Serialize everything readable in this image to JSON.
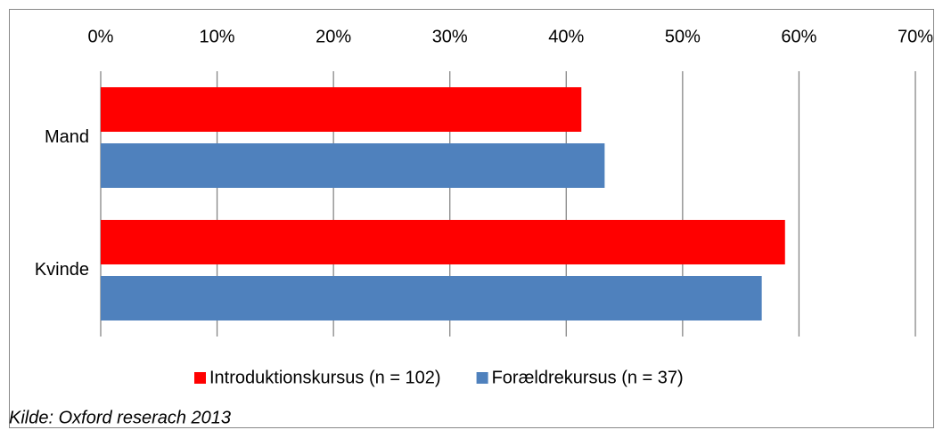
{
  "chart_data": {
    "type": "bar",
    "orientation": "horizontal",
    "categories": [
      "Mand",
      "Kvinde"
    ],
    "series": [
      {
        "name": "Introduktionskursus (n = 102)",
        "color": "#ff0000",
        "values": [
          41.3,
          58.8
        ]
      },
      {
        "name": "Forældrekursus (n = 37)",
        "color": "#4f81bd",
        "values": [
          43.3,
          56.8
        ]
      }
    ],
    "xlim": [
      0,
      70
    ],
    "xticks": [
      {
        "value": 0,
        "label": "0%"
      },
      {
        "value": 10,
        "label": "10%"
      },
      {
        "value": 20,
        "label": "20%"
      },
      {
        "value": 30,
        "label": "30%"
      },
      {
        "value": 40,
        "label": "40%"
      },
      {
        "value": 50,
        "label": "50%"
      },
      {
        "value": 60,
        "label": "60%"
      },
      {
        "value": 70,
        "label": "70%"
      }
    ],
    "grid": true,
    "legend": "bottom",
    "source": "Kilde: Oxford reserach 2013"
  }
}
